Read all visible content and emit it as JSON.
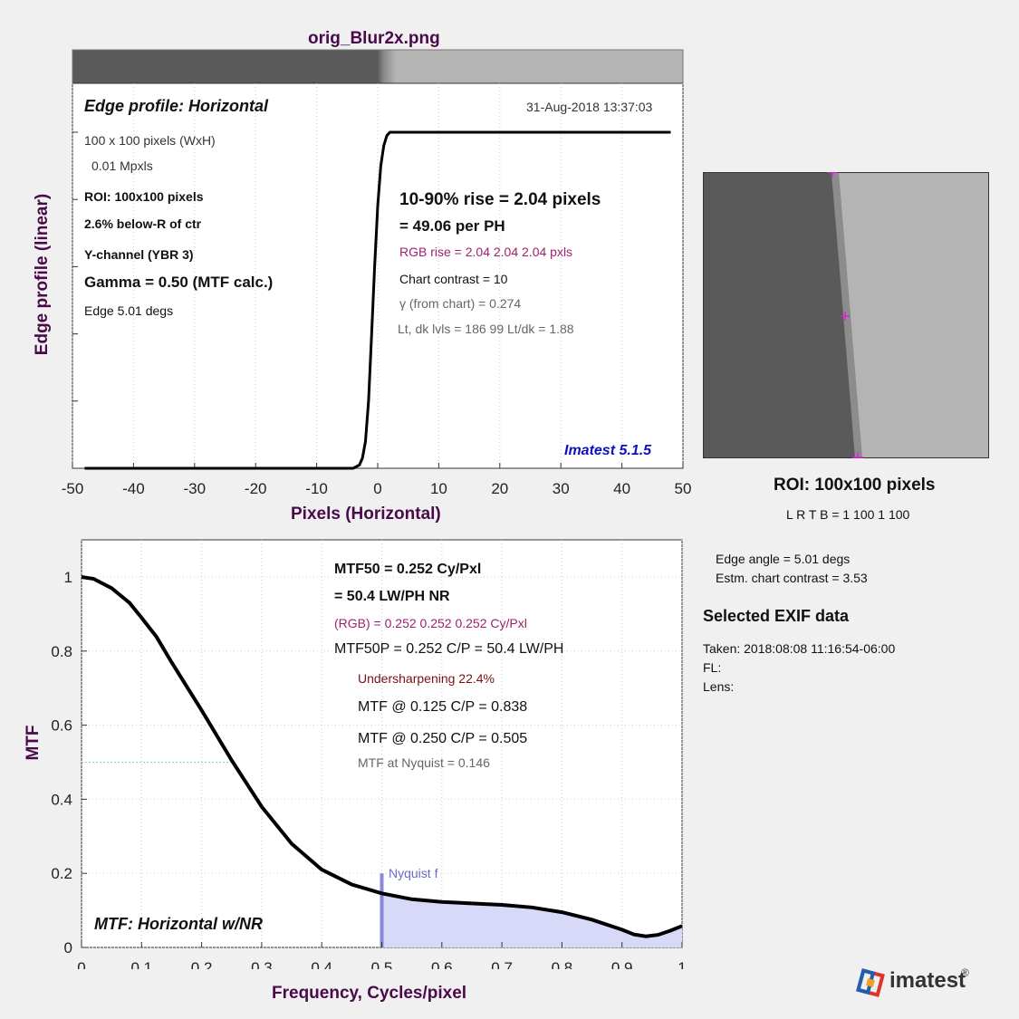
{
  "window_title": "orig_Blur2x.png",
  "edge_plot": {
    "heading": "Edge profile: Horizontal",
    "timestamp": "31-Aug-2018 13:37:03",
    "ylabel": "Edge profile (linear)",
    "xlabel": "Pixels (Horizontal)",
    "watermark": "Imatest 5.1.5",
    "left_info": [
      "100 x 100 pixels (WxH)",
      "0.01 Mpxls",
      "ROI:  100x100 pixels",
      "2.6% below-R of ctr",
      "Y-channel  (YBR 3)",
      "Gamma = 0.50 (MTF calc.)",
      "Edge   5.01 degs"
    ],
    "rise_line1": "10-90% rise = 2.04 pixels",
    "rise_line2": "=  49.06 per PH",
    "rgb_rise": "RGB rise =   2.04    2.04    2.04 pxls",
    "chart_contrast": "Chart contrast = 10",
    "gamma_chart": "γ (from chart) = 0.274",
    "levels": "Lt, dk lvls = 186  99  Lt/dk = 1.88"
  },
  "mtf_plot": {
    "ylabel": "MTF",
    "xlabel": "Frequency, Cycles/pixel",
    "label": "MTF: Horizontal w/NR",
    "nyquist_label": "Nyquist f",
    "mtf50": "MTF50 = 0.252 Cy/Pxl",
    "lwph": "= 50.4 LW/PH  NR",
    "rgb": "(RGB) = 0.252  0.252  0.252 Cy/Pxl",
    "mtf50p": "MTF50P = 0.252 C/P = 50.4 LW/PH",
    "undersharpening": "Undersharpening 22.4%",
    "mtf_125": "MTF @ 0.125 C/P = 0.838",
    "mtf_250": "MTF @ 0.250 C/P = 0.505",
    "mtf_nyq": "MTF at Nyquist = 0.146"
  },
  "roi": {
    "title": "ROI:  100x100 pixels",
    "lrtb": "L R   T B = 1 100   1 100",
    "edge_angle": "Edge angle = 5.01 degs",
    "chart_contrast": "Estm. chart contrast = 3.53",
    "exif_heading": "Selected EXIF data",
    "taken": "Taken: 2018:08:08 11:16:54-06:00",
    "fl": "FL:",
    "lens": "Lens:"
  },
  "logo_text": "imatest",
  "colors": {
    "axis_label": "#4a0a4a",
    "rgb_text": "#a02070",
    "watermark": "#1010c0",
    "nyquist": "#8a8ad8",
    "nyquist_fill": "#d8d8f8",
    "roi_marker": "#e020e0"
  },
  "chart_data": [
    {
      "type": "line",
      "title": "Edge profile: Horizontal",
      "xlabel": "Pixels (Horizontal)",
      "ylabel": "Edge profile (linear)",
      "xlim": [
        -50,
        50
      ],
      "xticks": [
        -50,
        -40,
        -30,
        -20,
        -10,
        0,
        10,
        20,
        30,
        40,
        50
      ],
      "grid": true,
      "x": [
        -48,
        -4,
        -3,
        -2.5,
        -2,
        -1.5,
        -1,
        -0.5,
        0,
        0.5,
        1,
        1.5,
        2,
        3,
        48
      ],
      "y": [
        0,
        0,
        0.01,
        0.03,
        0.08,
        0.2,
        0.4,
        0.6,
        0.78,
        0.9,
        0.96,
        0.99,
        1.0,
        1.0,
        1.0
      ]
    },
    {
      "type": "line",
      "title": "MTF: Horizontal w/NR",
      "xlabel": "Frequency, Cycles/pixel",
      "ylabel": "MTF",
      "xlim": [
        0,
        1
      ],
      "ylim": [
        0,
        1.05
      ],
      "xticks": [
        0,
        0.1,
        0.2,
        0.3,
        0.4,
        0.5,
        0.6,
        0.7,
        0.8,
        0.9,
        1
      ],
      "yticks": [
        0,
        0.2,
        0.4,
        0.6,
        0.8,
        1
      ],
      "grid": true,
      "nyquist": 0.5,
      "x": [
        0,
        0.02,
        0.05,
        0.08,
        0.1,
        0.125,
        0.15,
        0.2,
        0.25,
        0.3,
        0.35,
        0.4,
        0.45,
        0.5,
        0.55,
        0.6,
        0.7,
        0.75,
        0.8,
        0.85,
        0.9,
        0.92,
        0.94,
        0.96,
        0.98,
        1.0
      ],
      "y": [
        1.0,
        0.995,
        0.97,
        0.93,
        0.89,
        0.838,
        0.77,
        0.64,
        0.505,
        0.38,
        0.28,
        0.21,
        0.17,
        0.146,
        0.13,
        0.123,
        0.115,
        0.108,
        0.095,
        0.075,
        0.048,
        0.035,
        0.03,
        0.034,
        0.045,
        0.058
      ]
    }
  ]
}
